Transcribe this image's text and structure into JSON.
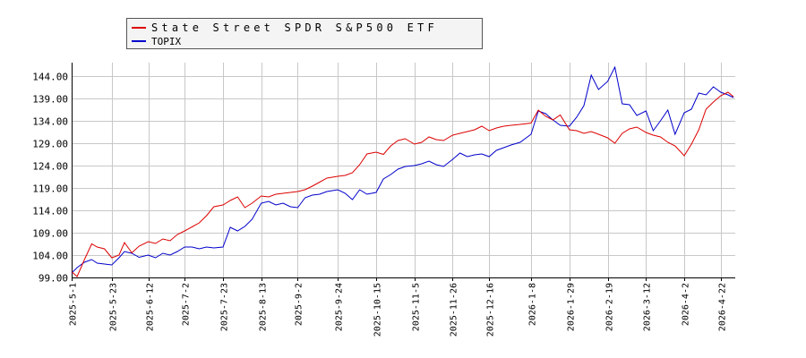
{
  "chart_data": {
    "type": "line",
    "title": "",
    "xlabel": "",
    "ylabel": "",
    "ylim": [
      99.0,
      147.0
    ],
    "y_ticks": [
      "99.00",
      "104.00",
      "109.00",
      "114.00",
      "119.00",
      "124.00",
      "129.00",
      "134.00",
      "139.00",
      "144.00"
    ],
    "x_ticks": [
      "2025-5-1",
      "2025-5-23",
      "2025-6-12",
      "2025-7-2",
      "2025-7-23",
      "2025-8-13",
      "2025-9-2",
      "2025-9-24",
      "2025-10-15",
      "2025-11-5",
      "2025-11-26",
      "2025-12-16",
      "2026-1-8",
      "2026-1-29",
      "2026-2-19",
      "2026-3-12",
      "2026-4-2",
      "2026-4-22"
    ],
    "grid": true,
    "legend_position": "top-left",
    "series": [
      {
        "name": "State Street SPDR S&P500 ETF",
        "color": "#dd0000",
        "x": [
          "2025-5-1",
          "2025-5-4",
          "2025-5-8",
          "2025-5-12",
          "2025-5-15",
          "2025-5-19",
          "2025-5-23",
          "2025-5-27",
          "2025-5-30",
          "2025-6-3",
          "2025-6-7",
          "2025-6-12",
          "2025-6-16",
          "2025-6-20",
          "2025-6-24",
          "2025-6-28",
          "2025-7-2",
          "2025-7-6",
          "2025-7-10",
          "2025-7-14",
          "2025-7-18",
          "2025-7-23",
          "2025-7-27",
          "2025-7-31",
          "2025-8-4",
          "2025-8-8",
          "2025-8-13",
          "2025-8-17",
          "2025-8-21",
          "2025-8-25",
          "2025-8-29",
          "2025-9-2",
          "2025-9-6",
          "2025-9-10",
          "2025-9-14",
          "2025-9-18",
          "2025-9-24",
          "2025-9-28",
          "2025-10-2",
          "2025-10-6",
          "2025-10-10",
          "2025-10-15",
          "2025-10-19",
          "2025-10-23",
          "2025-10-27",
          "2025-10-31",
          "2025-11-5",
          "2025-11-9",
          "2025-11-13",
          "2025-11-17",
          "2025-11-21",
          "2025-11-26",
          "2025-11-30",
          "2025-12-4",
          "2025-12-8",
          "2025-12-12",
          "2025-12-16",
          "2025-12-20",
          "2025-12-24",
          "2025-12-28",
          "2026-1-2",
          "2026-1-8",
          "2026-1-12",
          "2026-1-16",
          "2026-1-20",
          "2026-1-24",
          "2026-1-29",
          "2026-2-2",
          "2026-2-6",
          "2026-2-10",
          "2026-2-14",
          "2026-2-19",
          "2026-2-23",
          "2026-2-27",
          "2026-3-3",
          "2026-3-7",
          "2026-3-12",
          "2026-3-16",
          "2026-3-20",
          "2026-3-24",
          "2026-3-28",
          "2026-4-2",
          "2026-4-6",
          "2026-4-10",
          "2026-4-14",
          "2026-4-18",
          "2026-4-22",
          "2026-4-26",
          "2026-4-29"
        ],
        "values": [
          100.3,
          99.2,
          103.0,
          106.5,
          105.8,
          105.4,
          103.4,
          104.0,
          106.8,
          104.5,
          106.0,
          107.0,
          106.6,
          107.6,
          107.2,
          108.6,
          109.4,
          110.3,
          111.2,
          112.8,
          114.8,
          115.2,
          116.2,
          117.0,
          114.6,
          115.6,
          117.2,
          117.0,
          117.6,
          117.8,
          118.0,
          118.2,
          118.6,
          119.4,
          120.3,
          121.2,
          121.6,
          121.8,
          122.4,
          124.2,
          126.6,
          127.0,
          126.5,
          128.4,
          129.6,
          130.0,
          128.8,
          129.2,
          130.4,
          129.8,
          129.6,
          130.8,
          131.2,
          131.6,
          132.0,
          132.8,
          131.8,
          132.4,
          132.8,
          133.0,
          133.2,
          133.5,
          136.4,
          135.0,
          134.2,
          135.3,
          132.0,
          131.8,
          131.2,
          131.6,
          131.0,
          130.2,
          129.0,
          131.2,
          132.2,
          132.6,
          131.4,
          130.8,
          130.4,
          129.2,
          128.4,
          126.2,
          128.8,
          132.0,
          136.6,
          138.2,
          139.6,
          140.4,
          139.4
        ]
      },
      {
        "name": "TOPIX",
        "color": "#0000cc",
        "x": [
          "2025-5-1",
          "2025-5-4",
          "2025-5-8",
          "2025-5-12",
          "2025-5-15",
          "2025-5-19",
          "2025-5-23",
          "2025-5-27",
          "2025-5-30",
          "2025-6-3",
          "2025-6-7",
          "2025-6-12",
          "2025-6-16",
          "2025-6-20",
          "2025-6-24",
          "2025-6-28",
          "2025-7-2",
          "2025-7-6",
          "2025-7-10",
          "2025-7-14",
          "2025-7-18",
          "2025-7-23",
          "2025-7-27",
          "2025-7-31",
          "2025-8-4",
          "2025-8-8",
          "2025-8-13",
          "2025-8-17",
          "2025-8-21",
          "2025-8-25",
          "2025-8-29",
          "2025-9-2",
          "2025-9-6",
          "2025-9-10",
          "2025-9-14",
          "2025-9-18",
          "2025-9-24",
          "2025-9-28",
          "2025-10-2",
          "2025-10-6",
          "2025-10-10",
          "2025-10-15",
          "2025-10-19",
          "2025-10-23",
          "2025-10-27",
          "2025-10-31",
          "2025-11-5",
          "2025-11-9",
          "2025-11-13",
          "2025-11-17",
          "2025-11-21",
          "2025-11-26",
          "2025-11-30",
          "2025-12-4",
          "2025-12-8",
          "2025-12-12",
          "2025-12-16",
          "2025-12-20",
          "2025-12-24",
          "2025-12-28",
          "2026-1-2",
          "2026-1-8",
          "2026-1-12",
          "2026-1-16",
          "2026-1-20",
          "2026-1-24",
          "2026-1-29",
          "2026-2-2",
          "2026-2-6",
          "2026-2-10",
          "2026-2-14",
          "2026-2-19",
          "2026-2-23",
          "2026-2-27",
          "2026-3-3",
          "2026-3-7",
          "2026-3-12",
          "2026-3-16",
          "2026-3-20",
          "2026-3-24",
          "2026-3-28",
          "2026-4-2",
          "2026-4-6",
          "2026-4-10",
          "2026-4-14",
          "2026-4-18",
          "2026-4-22",
          "2026-4-26",
          "2026-4-29"
        ],
        "values": [
          100.0,
          101.2,
          102.4,
          103.0,
          102.2,
          102.0,
          101.8,
          103.4,
          104.8,
          104.4,
          103.5,
          104.0,
          103.4,
          104.4,
          104.0,
          104.8,
          105.8,
          105.8,
          105.4,
          105.8,
          105.6,
          105.8,
          110.2,
          109.4,
          110.4,
          112.0,
          115.6,
          116.0,
          115.2,
          115.6,
          114.8,
          114.6,
          116.8,
          117.4,
          117.6,
          118.2,
          118.6,
          117.8,
          116.4,
          118.6,
          117.6,
          118.0,
          121.0,
          122.0,
          123.2,
          123.8,
          124.0,
          124.4,
          125.0,
          124.2,
          123.8,
          125.4,
          126.8,
          126.0,
          126.4,
          126.6,
          126.0,
          127.4,
          128.0,
          128.6,
          129.2,
          131.0,
          136.2,
          135.6,
          134.2,
          133.0,
          132.8,
          134.8,
          137.4,
          144.2,
          141.0,
          142.8,
          146.0,
          137.8,
          137.6,
          135.2,
          136.2,
          131.8,
          134.0,
          136.4,
          131.0,
          135.8,
          136.6,
          140.2,
          139.8,
          141.6,
          140.4,
          139.8,
          139.2
        ]
      }
    ]
  }
}
